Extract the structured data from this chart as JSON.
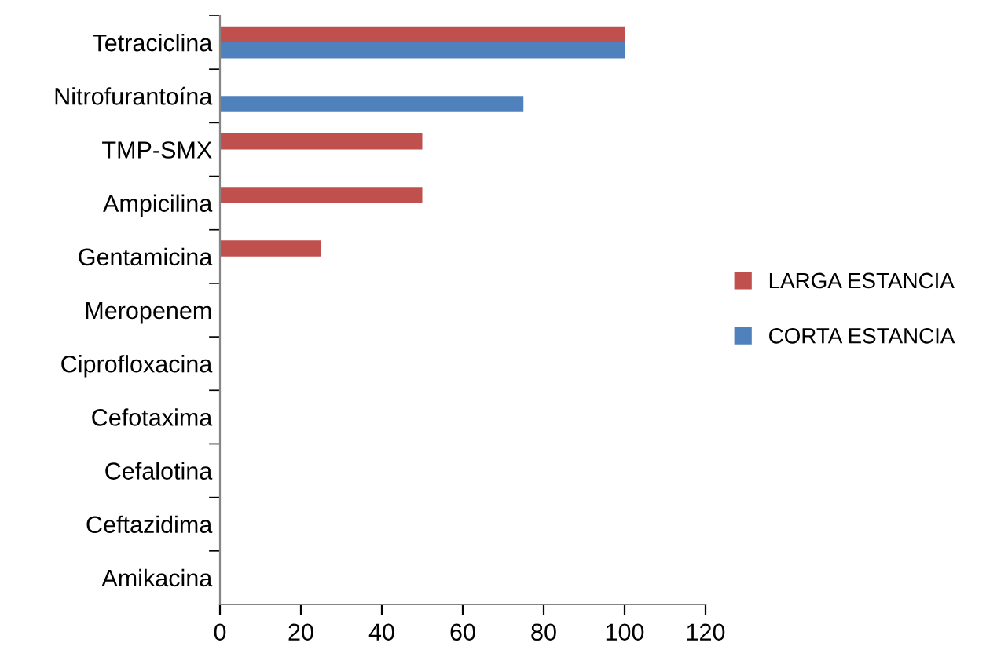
{
  "chart_data": {
    "type": "bar",
    "orientation": "horizontal",
    "categories": [
      "Tetraciclina",
      "Nitrofurantoína",
      "TMP-SMX",
      "Ampicilina",
      "Gentamicina",
      "Meropenem",
      "Ciprofloxacina",
      "Cefotaxima",
      "Cefalotina",
      "Ceftazidima",
      "Amikacina"
    ],
    "series": [
      {
        "name": "LARGA ESTANCIA",
        "color": "#c0504d",
        "values": [
          100,
          0,
          50,
          50,
          25,
          0,
          0,
          0,
          0,
          0,
          0
        ]
      },
      {
        "name": "CORTA ESTANCIA",
        "color": "#4f81bd",
        "values": [
          100,
          75,
          0,
          0,
          0,
          0,
          0,
          0,
          0,
          0,
          0
        ]
      }
    ],
    "xlim": [
      0,
      120
    ],
    "xticks": [
      0,
      20,
      40,
      60,
      80,
      100,
      120
    ],
    "grid": false,
    "legend": "right"
  }
}
